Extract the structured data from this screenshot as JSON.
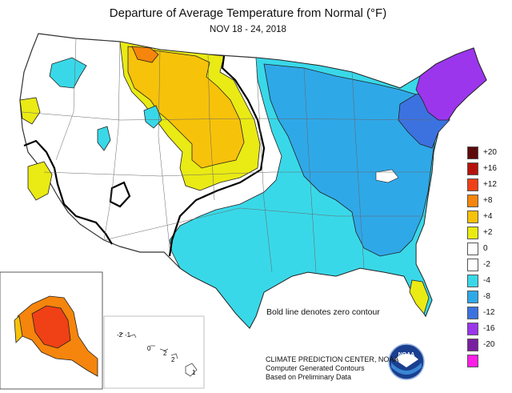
{
  "title": "Departure of Average Temperature from Normal (°F)",
  "subtitle": "NOV 18 - 24, 2018",
  "legend": {
    "items": [
      {
        "label": "+20",
        "color": "#5c0a0a"
      },
      {
        "label": "+16",
        "color": "#b5120c"
      },
      {
        "label": "+12",
        "color": "#f04016"
      },
      {
        "label": "+8",
        "color": "#f5850c"
      },
      {
        "label": "+4",
        "color": "#f7c20a"
      },
      {
        "label": "+2",
        "color": "#eaea14"
      },
      {
        "label": "0",
        "color": "#ffffff"
      },
      {
        "label": "-2",
        "color": "#ffffff"
      },
      {
        "label": "-4",
        "color": "#39d8e8"
      },
      {
        "label": "-8",
        "color": "#2fa8e8"
      },
      {
        "label": "-12",
        "color": "#3c72e0"
      },
      {
        "label": "-16",
        "color": "#9b36ec"
      },
      {
        "label": "-20",
        "color": "#7a1fa0"
      },
      {
        "label": "",
        "color": "#ff1ee8"
      }
    ]
  },
  "note": "Bold line denotes zero contour",
  "credits": {
    "line1": "CLIMATE PREDICTION CENTER, NOAA",
    "line2": "Computer Generated Contours",
    "line3": "Based on Preliminary Data"
  },
  "logo_text": "NOAA",
  "hawaii_labels": [
    "-2",
    "-1",
    "0",
    "2",
    "2",
    "1"
  ]
}
